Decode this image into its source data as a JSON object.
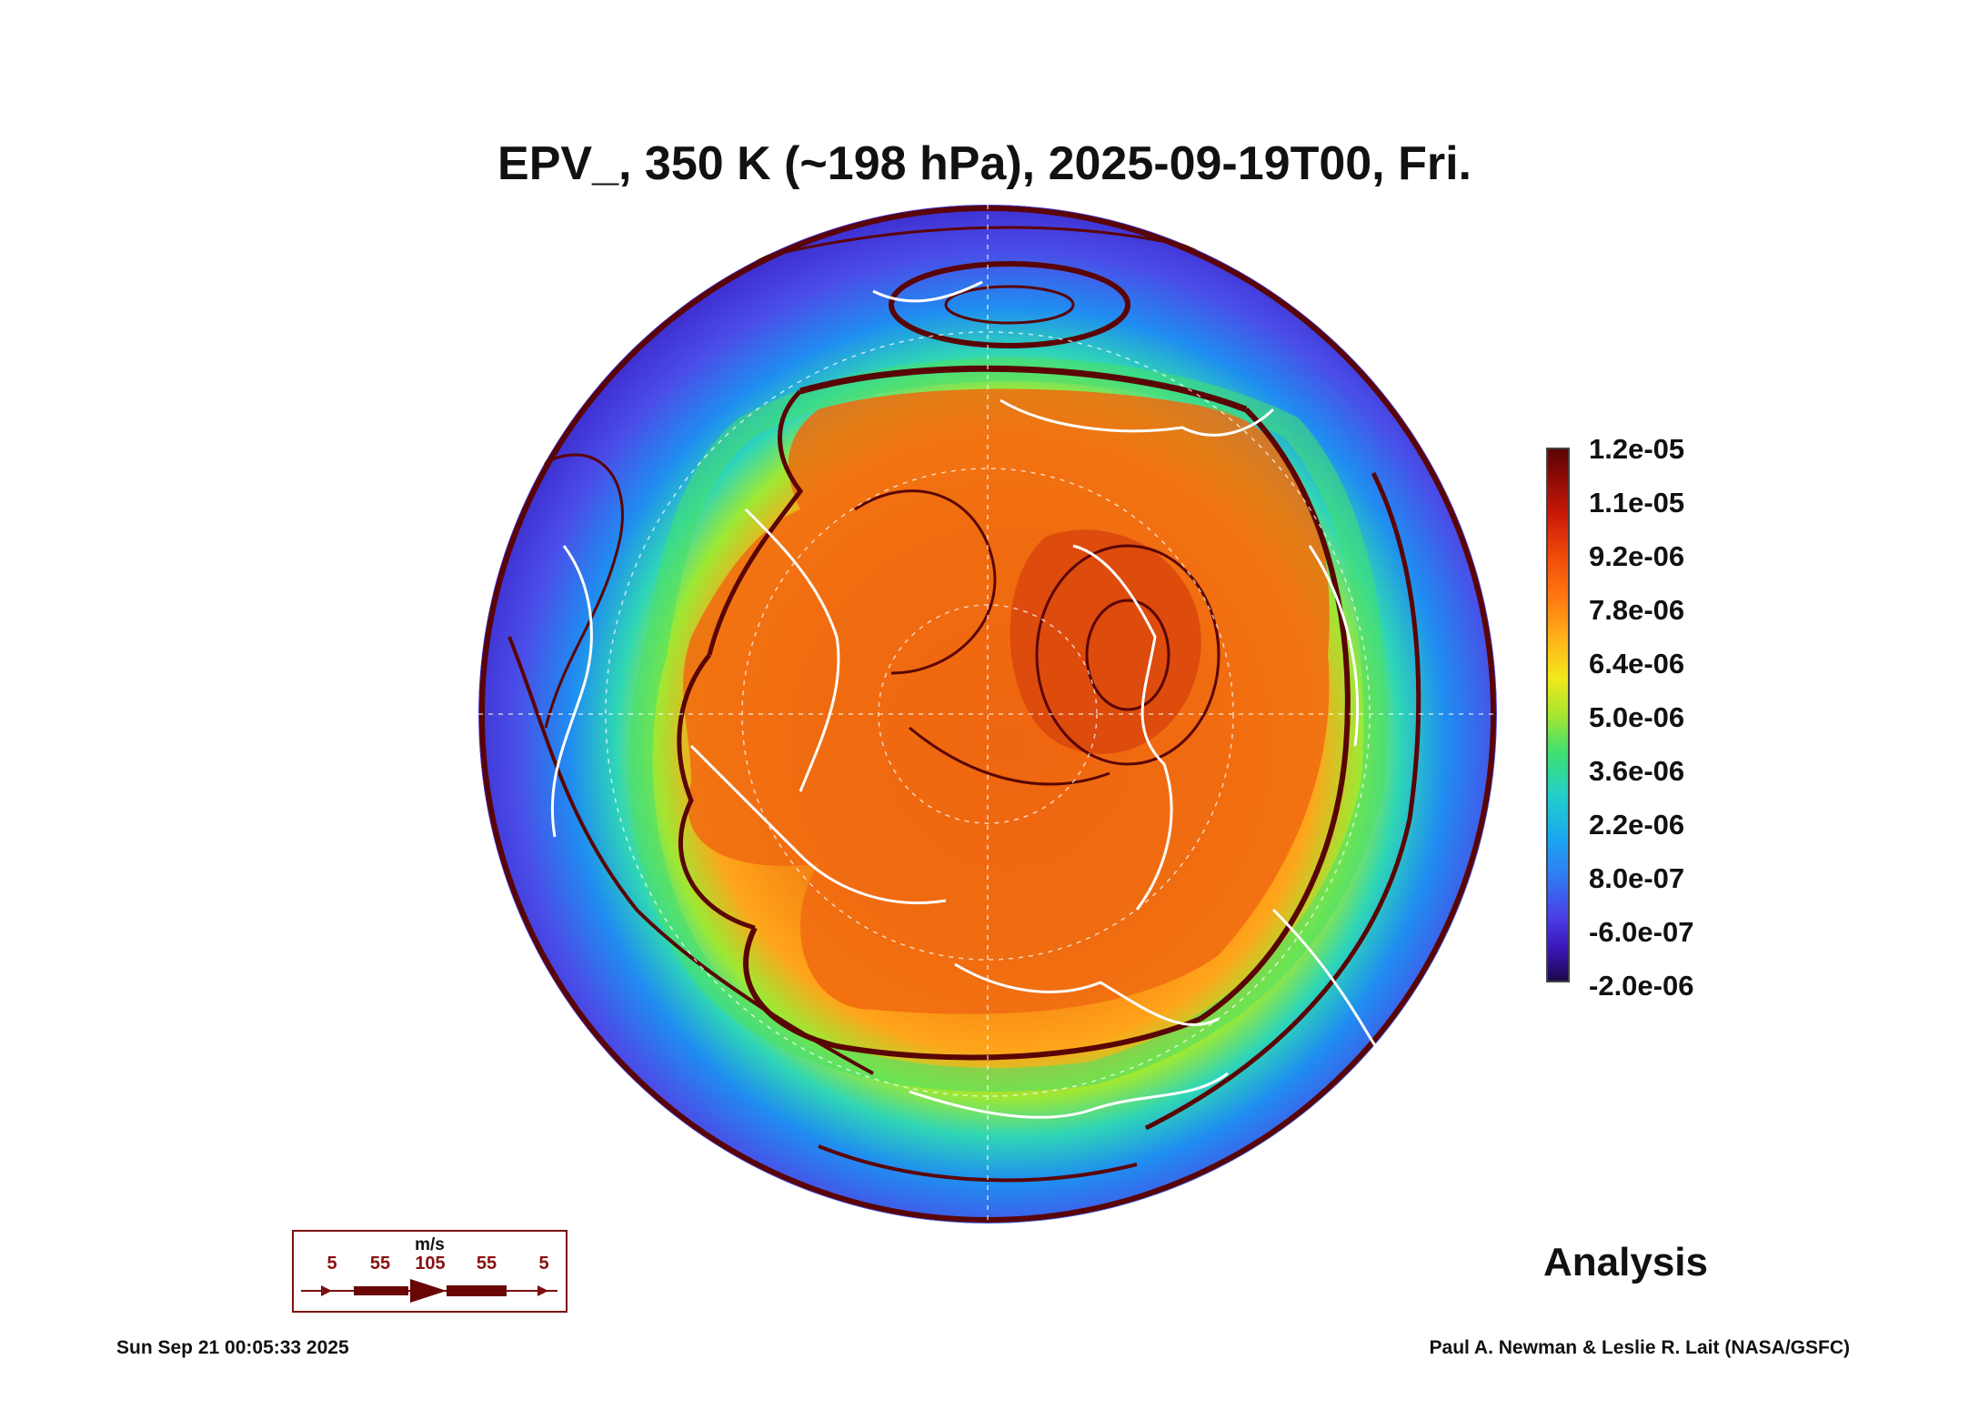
{
  "title": "EPV_, 350 K (~198 hPa), 2025-09-19T00, Fri.",
  "colorbar": {
    "ticks": [
      "1.2e-05",
      "1.1e-05",
      "9.2e-06",
      "7.8e-06",
      "6.4e-06",
      "5.0e-06",
      "3.6e-06",
      "2.2e-06",
      "8.0e-07",
      "-6.0e-07",
      "-2.0e-06"
    ],
    "colors": [
      "#1b0a4a",
      "#3a16b8",
      "#2f7ef2",
      "#22d0c8",
      "#3fe070",
      "#f2e81a",
      "#ff7a10",
      "#c81808",
      "#5a0404"
    ]
  },
  "wind_legend": {
    "unit": "m/s",
    "ticks": [
      "5",
      "55",
      "105",
      "55",
      "5"
    ]
  },
  "label_analysis": "Analysis",
  "footer": {
    "timestamp": "Sun Sep 21 00:05:33 2025",
    "credit": "Paul A. Newman & Leslie R. Lait (NASA/GSFC)"
  },
  "map": {
    "projection": "north-polar orthographic",
    "coastline_color": "#ffffff",
    "streamline_color": "#5a0505"
  }
}
